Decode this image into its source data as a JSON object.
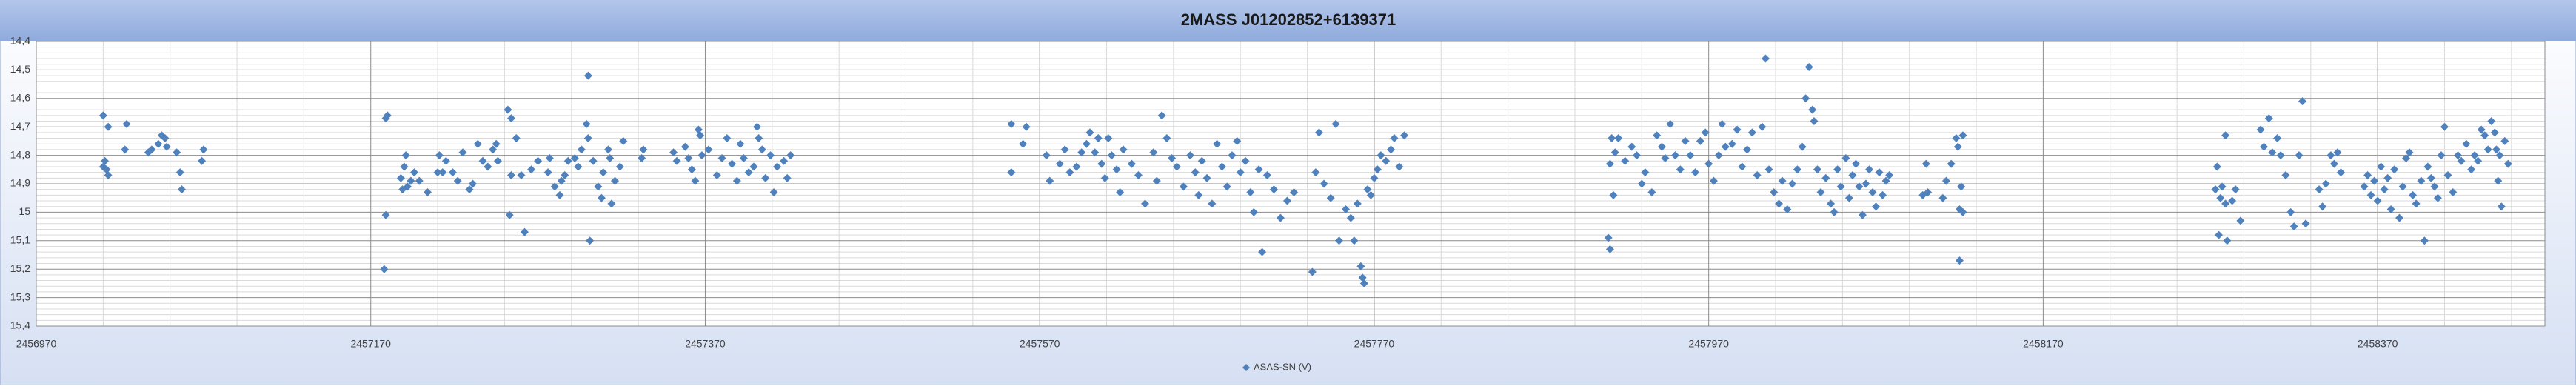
{
  "chart_data": {
    "type": "scatter",
    "title": "2MASS J01202852+6139371",
    "xlim": [
      2456970,
      2458470
    ],
    "xticks": [
      2456970,
      2457170,
      2457370,
      2457570,
      2457770,
      2457970,
      2458170,
      2458370
    ],
    "ylim": [
      15.4,
      14.4
    ],
    "yticks": [
      {
        "value": 14.4,
        "label": "14,4"
      },
      {
        "value": 14.5,
        "label": "14,5"
      },
      {
        "value": 14.6,
        "label": "14,6"
      },
      {
        "value": 14.7,
        "label": "14,7"
      },
      {
        "value": 14.8,
        "label": "14,8"
      },
      {
        "value": 14.9,
        "label": "14,9"
      },
      {
        "value": 15,
        "label": "15"
      },
      {
        "value": 15.1,
        "label": "15,1"
      },
      {
        "value": 15.2,
        "label": "15,2"
      },
      {
        "value": 15.3,
        "label": "15,3"
      },
      {
        "value": 15.4,
        "label": "15,4"
      }
    ],
    "grid": true,
    "minor_grid": true,
    "legend": "bottom",
    "marker": "diamond",
    "series": [
      {
        "name": "ASAS-SN (V)",
        "color": "#4f81bd",
        "x": [
          2457010,
          2457010,
          2457011,
          2457012,
          2457013,
          2457013,
          2457023,
          2457024,
          2457037,
          2457039,
          2457043,
          2457045,
          2457047,
          2457048,
          2457054,
          2457056,
          2457057,
          2457069,
          2457070,
          2457179,
          2457180,
          2457179,
          2457178,
          2457188,
          2457189,
          2457190,
          2457191,
          2457192,
          2457194,
          2457196,
          2457199,
          2457204,
          2457210,
          2457211,
          2457213,
          2457215,
          2457219,
          2457222,
          2457225,
          2457229,
          2457231,
          2457234,
          2457237,
          2457240,
          2457243,
          2457245,
          2457246,
          2457252,
          2457254,
          2457253,
          2457254,
          2457257,
          2457260,
          2457262,
          2457266,
          2457270,
          2457276,
          2457277,
          2457280,
          2457283,
          2457284,
          2457286,
          2457288,
          2457292,
          2457294,
          2457296,
          2457299,
          2457300,
          2457300,
          2457301,
          2457303,
          2457306,
          2457308,
          2457309,
          2457312,
          2457313,
          2457314,
          2457316,
          2457319,
          2457321,
          2457332,
          2457333,
          2457351,
          2457353,
          2457358,
          2457360,
          2457362,
          2457364,
          2457366,
          2457367,
          2457368,
          2457372,
          2457377,
          2457380,
          2457383,
          2457386,
          2457389,
          2457391,
          2457393,
          2457396,
          2457399,
          2457401,
          2457402,
          2457404,
          2457406,
          2457409,
          2457411,
          2457413,
          2457417,
          2457419,
          2457421,
          2457553,
          2457553,
          2457560,
          2457562,
          2457574,
          2457576,
          2457582,
          2457585,
          2457588,
          2457592,
          2457595,
          2457598,
          2457600,
          2457603,
          2457605,
          2457607,
          2457609,
          2457611,
          2457613,
          2457616,
          2457618,
          2457620,
          2457625,
          2457629,
          2457633,
          2457638,
          2457640,
          2457643,
          2457646,
          2457649,
          2457652,
          2457656,
          2457660,
          2457663,
          2457665,
          2457667,
          2457670,
          2457673,
          2457676,
          2457679,
          2457682,
          2457685,
          2457688,
          2457690,
          2457693,
          2457696,
          2457698,
          2457701,
          2457703,
          2457706,
          2457710,
          2457714,
          2457718,
          2457722,
          2457733,
          2457735,
          2457737,
          2457740,
          2457744,
          2457747,
          2457749,
          2457753,
          2457756,
          2457758,
          2457760,
          2457762,
          2457763,
          2457764,
          2457766,
          2457768,
          2457770,
          2457772,
          2457774,
          2457777,
          2457780,
          2457782,
          2457785,
          2457788,
          2457910,
          2457911,
          2457911,
          2457912,
          2457913,
          2457914,
          2457916,
          2457920,
          2457924,
          2457927,
          2457930,
          2457932,
          2457936,
          2457939,
          2457942,
          2457944,
          2457947,
          2457950,
          2457953,
          2457956,
          2457959,
          2457962,
          2457965,
          2457968,
          2457970,
          2457973,
          2457976,
          2457978,
          2457980,
          2457984,
          2457987,
          2457990,
          2457993,
          2457996,
          2457999,
          2458002,
          2458004,
          2458006,
          2458009,
          2458012,
          2458014,
          2458017,
          2458020,
          2458023,
          2458026,
          2458028,
          2458030,
          2458032,
          2458033,
          2458035,
          2458037,
          2458040,
          2458043,
          2458045,
          2458047,
          2458049,
          2458052,
          2458054,
          2458056,
          2458058,
          2458060,
          2458062,
          2458064,
          2458066,
          2458068,
          2458070,
          2458072,
          2458074,
          2458076,
          2458078,
          2458098,
          2458100,
          2458101,
          2458110,
          2458112,
          2458115,
          2458118,
          2458119,
          2458120,
          2458120,
          2458121,
          2458122,
          2458122,
          2458273,
          2458274,
          2458275,
          2458276,
          2458277,
          2458279,
          2458279,
          2458280,
          2458283,
          2458285,
          2458288,
          2458300,
          2458302,
          2458305,
          2458307,
          2458310,
          2458312,
          2458315,
          2458318,
          2458320,
          2458323,
          2458325,
          2458327,
          2458335,
          2458337,
          2458339,
          2458342,
          2458344,
          2458346,
          2458348,
          2458362,
          2458364,
          2458366,
          2458368,
          2458370,
          2458372,
          2458374,
          2458376,
          2458378,
          2458380,
          2458383,
          2458385,
          2458387,
          2458389,
          2458391,
          2458393,
          2458396,
          2458398,
          2458400,
          2458402,
          2458404,
          2458406,
          2458408,
          2458410,
          2458412,
          2458415,
          2458418,
          2458420,
          2458423,
          2458426,
          2458428,
          2458430,
          2458432,
          2458434,
          2458436,
          2458438,
          2458440,
          2458441,
          2458442,
          2458443,
          2458444,
          2458446,
          2458448
        ],
        "values": [
          14.84,
          14.66,
          14.82,
          14.85,
          14.7,
          14.87,
          14.78,
          14.69,
          14.79,
          14.78,
          14.76,
          14.73,
          14.74,
          14.77,
          14.79,
          14.86,
          14.92,
          14.82,
          14.78,
          14.67,
          14.66,
          15.01,
          15.2,
          14.88,
          14.92,
          14.84,
          14.8,
          14.91,
          14.89,
          14.86,
          14.89,
          14.93,
          14.86,
          14.8,
          14.86,
          14.82,
          14.86,
          14.89,
          14.79,
          14.92,
          14.9,
          14.76,
          14.82,
          14.84,
          14.78,
          14.76,
          14.82,
          14.64,
          14.67,
          15.01,
          14.87,
          14.74,
          14.87,
          15.07,
          14.85,
          14.82,
          14.86,
          14.81,
          14.91,
          14.94,
          14.89,
          14.87,
          14.82,
          14.81,
          14.84,
          14.78,
          14.69,
          14.52,
          14.74,
          15.1,
          14.82,
          14.91,
          14.95,
          14.86,
          14.78,
          14.81,
          14.97,
          14.89,
          14.84,
          14.75,
          14.81,
          14.78,
          14.79,
          14.82,
          14.77,
          14.81,
          14.85,
          14.89,
          14.71,
          14.73,
          14.8,
          14.78,
          14.87,
          14.81,
          14.74,
          14.83,
          14.89,
          14.76,
          14.81,
          14.86,
          14.84,
          14.7,
          14.74,
          14.78,
          14.88,
          14.8,
          14.93,
          14.84,
          14.82,
          14.88,
          14.8,
          14.69,
          14.86,
          14.76,
          14.7,
          14.8,
          14.89,
          14.83,
          14.78,
          14.86,
          14.84,
          14.79,
          14.76,
          14.72,
          14.79,
          14.74,
          14.83,
          14.88,
          14.74,
          14.8,
          14.85,
          14.93,
          14.78,
          14.83,
          14.87,
          14.97,
          14.79,
          14.89,
          14.66,
          14.74,
          14.81,
          14.84,
          14.91,
          14.8,
          14.86,
          14.94,
          14.82,
          14.88,
          14.97,
          14.76,
          14.84,
          14.91,
          14.8,
          14.75,
          14.86,
          14.82,
          14.93,
          15.0,
          14.85,
          15.14,
          14.87,
          14.92,
          15.02,
          14.96,
          14.93,
          15.21,
          14.86,
          14.72,
          14.9,
          14.95,
          14.69,
          15.1,
          14.99,
          15.02,
          15.1,
          14.97,
          15.19,
          15.23,
          15.25,
          14.92,
          14.94,
          14.88,
          14.85,
          14.8,
          14.82,
          14.78,
          14.74,
          14.84,
          14.73,
          15.09,
          15.13,
          14.83,
          14.74,
          14.94,
          14.79,
          14.74,
          14.82,
          14.77,
          14.8,
          14.9,
          14.86,
          14.93,
          14.73,
          14.77,
          14.81,
          14.69,
          14.8,
          14.85,
          14.75,
          14.8,
          14.86,
          14.75,
          14.72,
          14.83,
          14.89,
          14.8,
          14.69,
          14.77,
          14.76,
          14.71,
          14.84,
          14.78,
          14.72,
          14.87,
          14.7,
          14.46,
          14.85,
          14.93,
          14.97,
          14.89,
          14.99,
          14.9,
          14.85,
          14.77,
          14.6,
          14.49,
          14.64,
          14.68,
          14.85,
          14.93,
          14.88,
          14.97,
          15.0,
          14.85,
          14.91,
          14.81,
          14.95,
          14.87,
          14.83,
          14.91,
          15.01,
          14.9,
          14.85,
          14.93,
          14.98,
          14.86,
          14.94,
          14.89,
          14.87,
          14.94,
          14.83,
          14.93,
          14.95,
          14.89,
          14.83,
          14.74,
          14.77,
          14.99,
          15.17,
          14.91,
          15.0,
          14.73,
          14.92,
          14.84,
          15.08,
          14.95,
          14.91,
          14.97,
          14.73,
          15.1,
          14.96,
          14.92,
          15.03,
          14.71,
          14.77,
          14.67,
          14.79,
          14.74,
          14.8,
          14.87,
          15.0,
          15.05,
          14.8,
          14.61,
          15.04,
          14.92,
          14.98,
          14.9,
          14.8,
          14.83,
          14.79,
          14.86,
          14.91,
          14.87,
          14.94,
          14.89,
          14.96,
          14.84,
          14.92,
          14.88,
          14.99,
          14.85,
          15.02,
          14.91,
          14.81,
          14.79,
          14.94,
          14.97,
          14.89,
          15.1,
          14.84,
          14.88,
          14.91,
          14.95,
          14.8,
          14.7,
          14.87,
          14.93,
          14.8,
          14.82,
          14.76,
          14.85,
          14.8,
          14.82,
          14.71,
          14.73,
          14.78,
          14.68,
          14.72,
          14.78,
          14.89,
          14.8,
          14.98,
          14.75,
          14.83
        ]
      }
    ]
  }
}
